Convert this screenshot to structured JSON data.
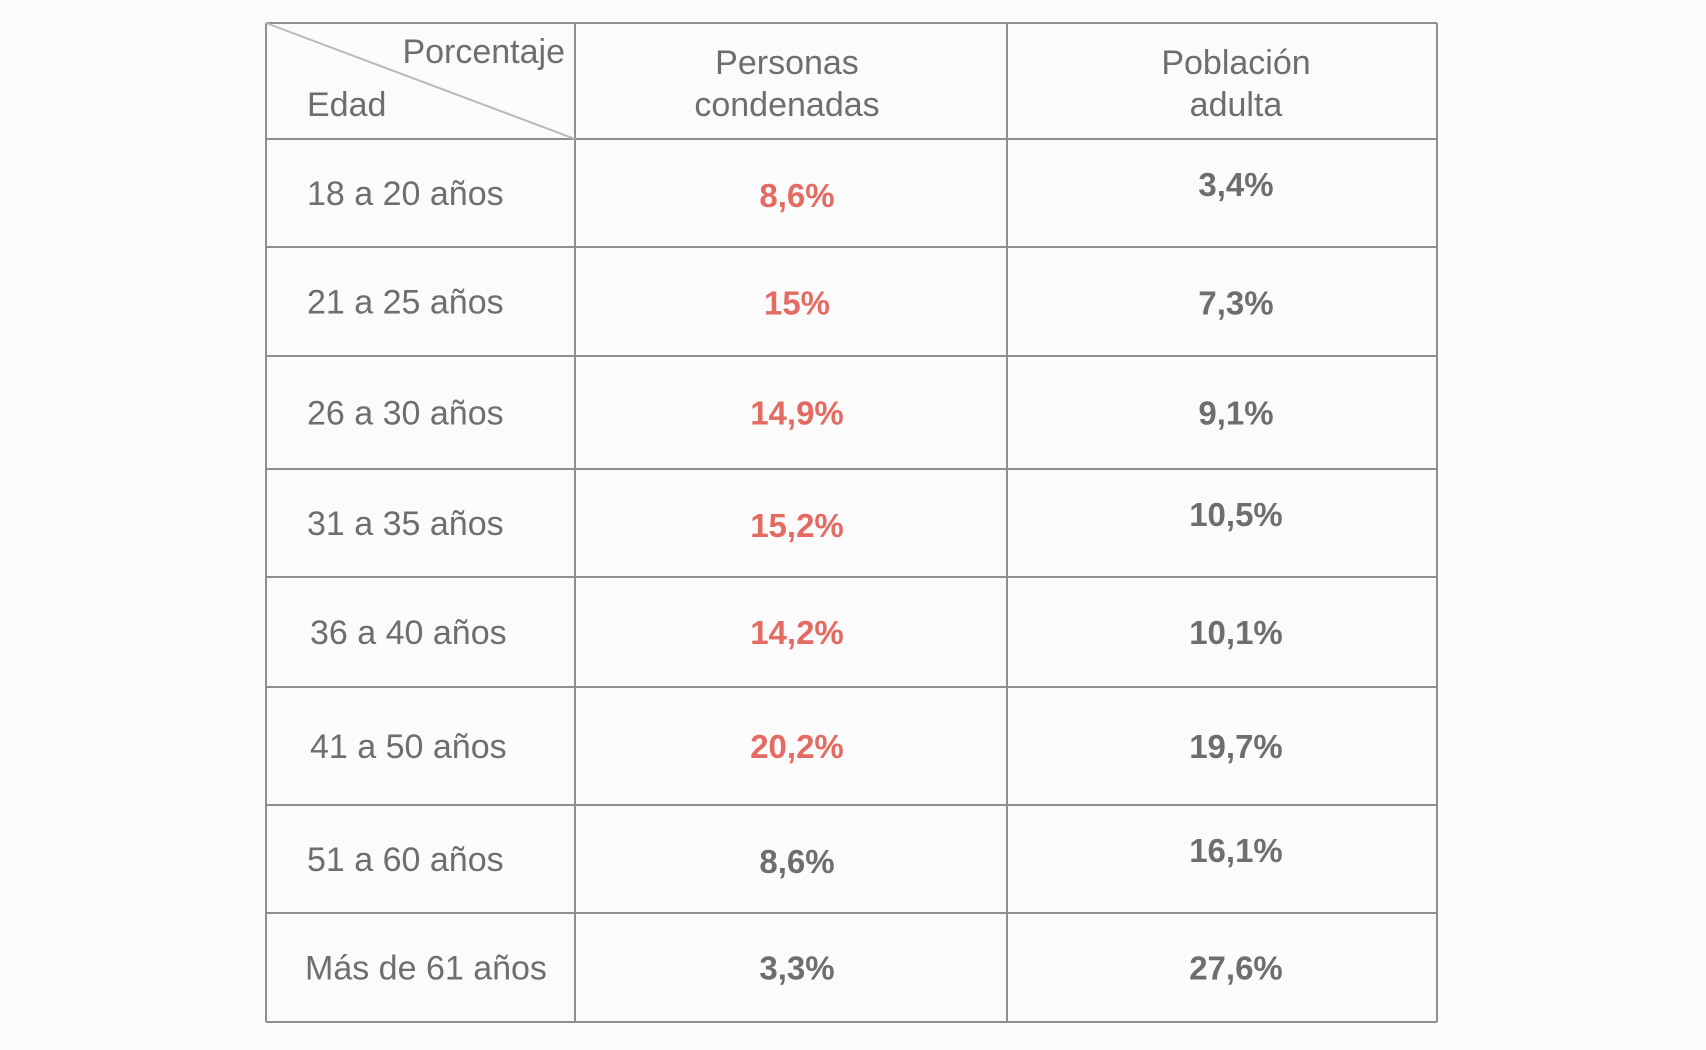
{
  "colors": {
    "text": "#6e6e6e",
    "highlight": "#e36b61",
    "grid": "#8f8f8f",
    "diagonal": "#b9b9b9",
    "background": "#fbfbfb"
  },
  "chart_data": {
    "type": "table",
    "corner_header": {
      "top_right": "Porcentaje",
      "bottom_left": "Edad"
    },
    "columns": [
      {
        "lines": [
          "Personas",
          "condenadas"
        ]
      },
      {
        "lines": [
          "Población",
          "adulta"
        ]
      }
    ],
    "rows": [
      {
        "age": "18 a 20 años",
        "condenadas": "8,6%",
        "poblacion": "3,4%",
        "highlight": true
      },
      {
        "age": "21 a 25 años",
        "condenadas": "15%",
        "poblacion": "7,3%",
        "highlight": true
      },
      {
        "age": "26 a 30 años",
        "condenadas": "14,9%",
        "poblacion": "9,1%",
        "highlight": true
      },
      {
        "age": "31 a 35 años",
        "condenadas": "15,2%",
        "poblacion": "10,5%",
        "highlight": true
      },
      {
        "age": "36 a 40 años",
        "condenadas": "14,2%",
        "poblacion": "10,1%",
        "highlight": true
      },
      {
        "age": "41 a 50 años",
        "condenadas": "20,2%",
        "poblacion": "19,7%",
        "highlight": true
      },
      {
        "age": "51 a 60 años",
        "condenadas": "8,6%",
        "poblacion": "16,1%",
        "highlight": false
      },
      {
        "age": "Más de 61 años",
        "condenadas": "3,3%",
        "poblacion": "27,6%",
        "highlight": false
      }
    ]
  }
}
